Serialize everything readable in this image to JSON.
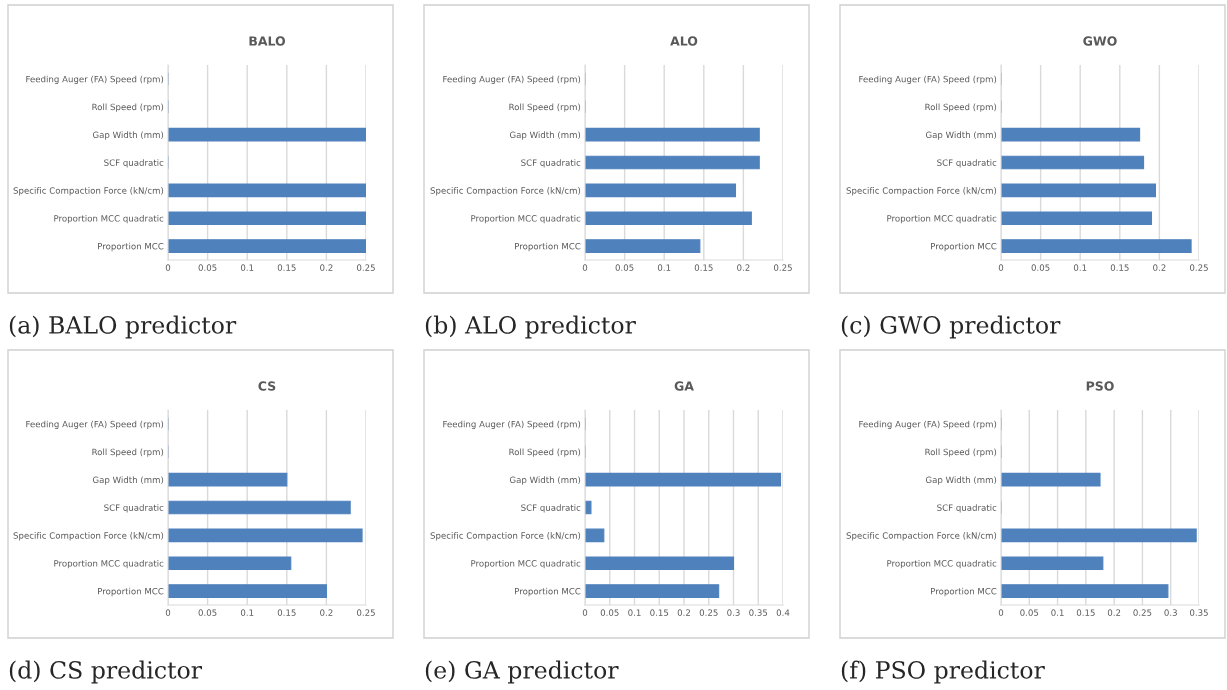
{
  "chart_data": [
    {
      "type": "bar",
      "orientation": "horizontal",
      "title": "BALO",
      "categories": [
        "Feeding Auger (FA) Speed (rpm)",
        "Roll Speed (rpm)",
        "Gap Width (mm)",
        "SCF quadratic",
        "Specific Compaction Force (kN/cm)",
        "Proportion MCC quadratic",
        "Proportion MCC"
      ],
      "values": [
        0,
        0,
        0.25,
        0,
        0.25,
        0.25,
        0.25
      ],
      "color": "#4f81bd",
      "xlim": [
        0,
        0.25
      ],
      "xticks": [
        0,
        0.05,
        0.1,
        0.15,
        0.2,
        0.25
      ],
      "grid": "x",
      "annotations": [
        "(a) BALO predictor"
      ]
    },
    {
      "type": "bar",
      "orientation": "horizontal",
      "title": "ALO",
      "categories": [
        "Feeding Auger (FA) Speed (rpm)",
        "Roll Speed (rpm)",
        "Gap Width (mm)",
        "SCF quadratic",
        "Specific Compaction Force (kN/cm)",
        "Proportion MCC quadratic",
        "Proportion MCC"
      ],
      "values": [
        0,
        0,
        0.22,
        0.22,
        0.19,
        0.21,
        0.145
      ],
      "color": "#4f81bd",
      "xlim": [
        0,
        0.25
      ],
      "xticks": [
        0,
        0.05,
        0.1,
        0.15,
        0.2,
        0.25
      ],
      "grid": "x",
      "annotations": [
        "(b) ALO predictor"
      ]
    },
    {
      "type": "bar",
      "orientation": "horizontal",
      "title": "GWO",
      "categories": [
        "Feeding Auger (FA) Speed (rpm)",
        "Roll Speed (rpm)",
        "Gap Width (mm)",
        "SCF quadratic",
        "Specific Compaction Force (kN/cm)",
        "Proportion MCC quadratic",
        "Proportion MCC"
      ],
      "values": [
        0,
        0,
        0.175,
        0.18,
        0.195,
        0.19,
        0.24
      ],
      "color": "#4f81bd",
      "xlim": [
        0,
        0.25
      ],
      "xticks": [
        0,
        0.05,
        0.1,
        0.15,
        0.2,
        0.25
      ],
      "grid": "x",
      "annotations": [
        "(c) GWO predictor"
      ]
    },
    {
      "type": "bar",
      "orientation": "horizontal",
      "title": "CS",
      "categories": [
        "Feeding Auger (FA) Speed (rpm)",
        "Roll Speed (rpm)",
        "Gap Width (mm)",
        "SCF quadratic",
        "Specific Compaction Force (kN/cm)",
        "Proportion MCC quadratic",
        "Proportion MCC"
      ],
      "values": [
        0,
        0,
        0.15,
        0.23,
        0.245,
        0.155,
        0.2
      ],
      "color": "#4f81bd",
      "xlim": [
        0,
        0.25
      ],
      "xticks": [
        0,
        0.05,
        0.1,
        0.15,
        0.2,
        0.25
      ],
      "grid": "x",
      "annotations": [
        "(d) CS predictor"
      ]
    },
    {
      "type": "bar",
      "orientation": "horizontal",
      "title": "GA",
      "categories": [
        "Feeding Auger (FA) Speed (rpm)",
        "Roll Speed (rpm)",
        "Gap Width (mm)",
        "SCF quadratic",
        "Specific Compaction Force (kN/cm)",
        "Proportion MCC quadratic",
        "Proportion MCC"
      ],
      "values": [
        0,
        0,
        0.395,
        0.012,
        0.038,
        0.3,
        0.27
      ],
      "color": "#4f81bd",
      "xlim": [
        0,
        0.4
      ],
      "xticks": [
        0,
        0.05,
        0.1,
        0.15,
        0.2,
        0.25,
        0.3,
        0.35,
        0.4
      ],
      "grid": "x",
      "annotations": [
        "(e) GA predictor"
      ]
    },
    {
      "type": "bar",
      "orientation": "horizontal",
      "title": "PSO",
      "categories": [
        "Feeding Auger (FA) Speed (rpm)",
        "Roll Speed (rpm)",
        "Gap Width (mm)",
        "SCF quadratic",
        "Specific Compaction Force (kN/cm)",
        "Proportion MCC quadratic",
        "Proportion MCC"
      ],
      "values": [
        0,
        0,
        0.175,
        0,
        0.345,
        0.18,
        0.295
      ],
      "color": "#4f81bd",
      "xlim": [
        0,
        0.35
      ],
      "xticks": [
        0,
        0.05,
        0.1,
        0.15,
        0.2,
        0.25,
        0.3,
        0.35
      ],
      "grid": "x",
      "annotations": [
        "(f) PSO predictor"
      ]
    }
  ]
}
